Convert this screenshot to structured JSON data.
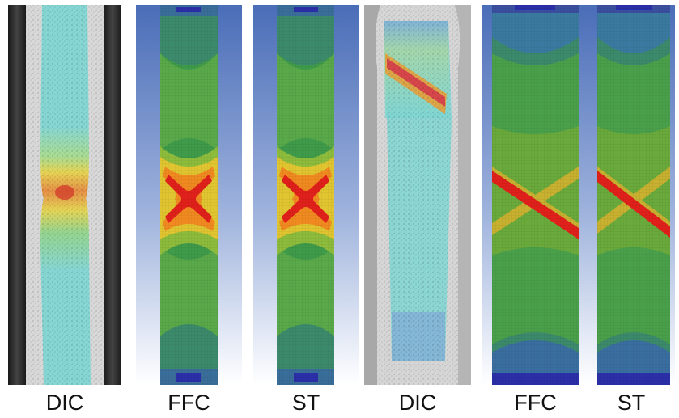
{
  "figure": {
    "panels": [
      {
        "label": "DIC",
        "kind": "photo-strain-map",
        "failure": "necking"
      },
      {
        "label": "FFC",
        "kind": "simulation-contour",
        "failure": "necking"
      },
      {
        "label": "ST",
        "kind": "simulation-contour",
        "failure": "necking"
      },
      {
        "label": "DIC",
        "kind": "photo-strain-map",
        "failure": "shear-band"
      },
      {
        "label": "FFC",
        "kind": "simulation-contour",
        "failure": "shear-band"
      },
      {
        "label": "ST",
        "kind": "simulation-contour",
        "failure": "shear-band"
      }
    ],
    "colors": {
      "low": "#2b2fa8",
      "cyan": "#7fd6d4",
      "green": "#3f9a4a",
      "yellow": "#e6d44a",
      "orange": "#f0a020",
      "high": "#e0201a",
      "sim_background_top": "#4a6db8",
      "sim_background_bottom": "#ffffff"
    }
  }
}
